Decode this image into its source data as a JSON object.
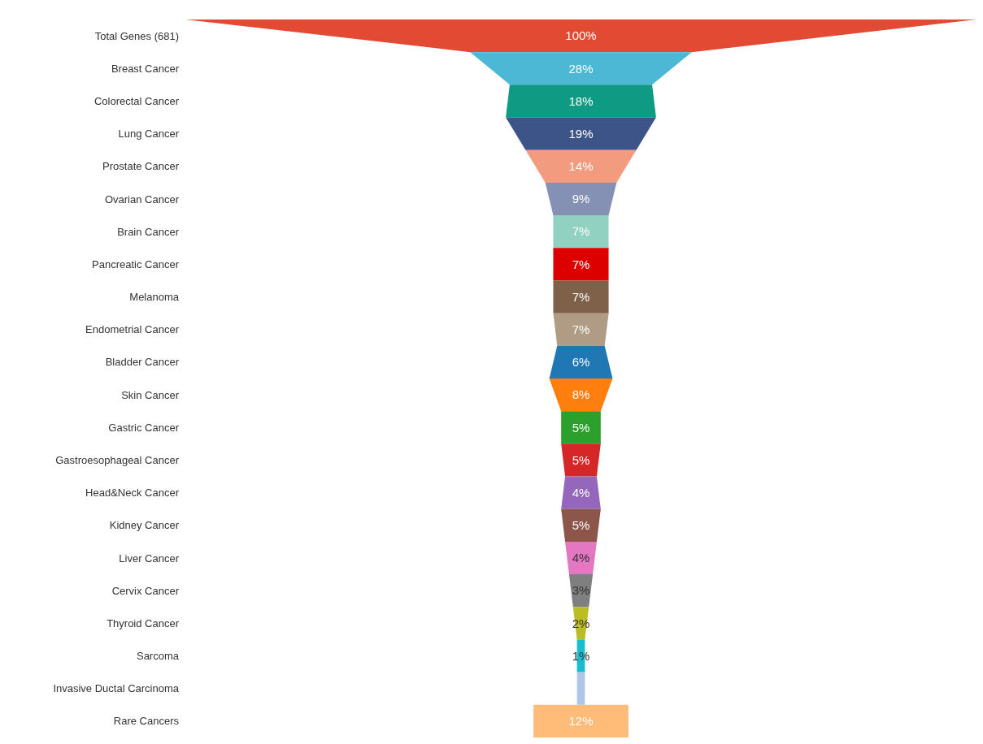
{
  "chart_data": {
    "type": "other",
    "categories": [
      "Total Genes (681)",
      "Breast Cancer",
      "Colorectal Cancer",
      "Lung Cancer",
      "Prostate Cancer",
      "Ovarian Cancer",
      "Brain Cancer",
      "Pancreatic Cancer",
      "Melanoma",
      "Endometrial Cancer",
      "Bladder Cancer",
      "Skin Cancer",
      "Gastric Cancer",
      "Gastroesophageal Cancer",
      "Head&Neck Cancer",
      "Kidney Cancer",
      "Liver Cancer",
      "Cervix Cancer",
      "Thyroid Cancer",
      "Sarcoma",
      "Invasive Ductal Carcinoma",
      "Rare Cancers"
    ],
    "values": [
      100,
      28,
      18,
      19,
      14,
      9,
      7,
      7,
      7,
      7,
      6,
      8,
      5,
      5,
      4,
      5,
      4,
      3,
      2,
      1,
      null,
      12
    ],
    "value_labels": [
      "100%",
      "28%",
      "18%",
      "19%",
      "14%",
      "9%",
      "7%",
      "7%",
      "7%",
      "7%",
      "6%",
      "8%",
      "5%",
      "5%",
      "4%",
      "5%",
      "4%",
      "3%",
      "2%",
      "1%",
      null,
      "12%"
    ],
    "colors": [
      "#e24a33",
      "#4cb8d6",
      "#0e9a83",
      "#3c5488",
      "#f39b7f",
      "#8491b4",
      "#91d1c2",
      "#dc0000",
      "#7e6148",
      "#b09c85",
      "#1f77b4",
      "#ff7f0e",
      "#2ca02c",
      "#d62728",
      "#9467bd",
      "#8c564b",
      "#e377c2",
      "#7f7f7f",
      "#bcbd22",
      "#17becf",
      "#aec7e8",
      "#ffbb78"
    ]
  }
}
